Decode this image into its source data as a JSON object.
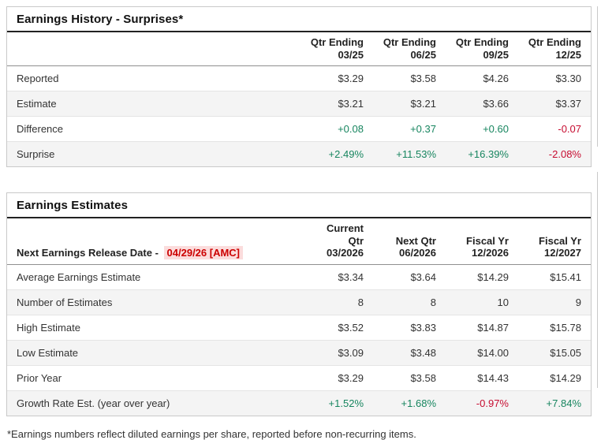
{
  "colors": {
    "positive": "#17855f",
    "negative": "#c60c30",
    "release_date_text": "#cc0000",
    "release_date_bg": "#fbdcdc"
  },
  "surprises_table": {
    "title": "Earnings History - Surprises*",
    "columns": [
      {
        "line1": "Qtr Ending",
        "line2": "03/25"
      },
      {
        "line1": "Qtr Ending",
        "line2": "06/25"
      },
      {
        "line1": "Qtr Ending",
        "line2": "09/25"
      },
      {
        "line1": "Qtr Ending",
        "line2": "12/25"
      }
    ],
    "rows": [
      {
        "label": "Reported",
        "values": [
          {
            "text": "$3.29",
            "tone": ""
          },
          {
            "text": "$3.58",
            "tone": ""
          },
          {
            "text": "$4.26",
            "tone": ""
          },
          {
            "text": "$3.30",
            "tone": ""
          }
        ]
      },
      {
        "label": "Estimate",
        "values": [
          {
            "text": "$3.21",
            "tone": ""
          },
          {
            "text": "$3.21",
            "tone": ""
          },
          {
            "text": "$3.66",
            "tone": ""
          },
          {
            "text": "$3.37",
            "tone": ""
          }
        ]
      },
      {
        "label": "Difference",
        "values": [
          {
            "text": "+0.08",
            "tone": "pos"
          },
          {
            "text": "+0.37",
            "tone": "pos"
          },
          {
            "text": "+0.60",
            "tone": "pos"
          },
          {
            "text": "-0.07",
            "tone": "neg"
          }
        ]
      },
      {
        "label": "Surprise",
        "values": [
          {
            "text": "+2.49%",
            "tone": "pos"
          },
          {
            "text": "+11.53%",
            "tone": "pos"
          },
          {
            "text": "+16.39%",
            "tone": "pos"
          },
          {
            "text": "-2.08%",
            "tone": "neg"
          }
        ]
      }
    ]
  },
  "estimates_table": {
    "title": "Earnings Estimates",
    "release_label": "Next Earnings Release Date - ",
    "release_date": "04/29/26 [AMC]",
    "columns": [
      {
        "line1": "Current Qtr",
        "line2": "03/2026"
      },
      {
        "line1": "Next Qtr",
        "line2": "06/2026"
      },
      {
        "line1": "Fiscal Yr",
        "line2": "12/2026"
      },
      {
        "line1": "Fiscal Yr",
        "line2": "12/2027"
      }
    ],
    "rows": [
      {
        "label": "Average Earnings Estimate",
        "values": [
          {
            "text": "$3.34",
            "tone": ""
          },
          {
            "text": "$3.64",
            "tone": ""
          },
          {
            "text": "$14.29",
            "tone": ""
          },
          {
            "text": "$15.41",
            "tone": ""
          }
        ]
      },
      {
        "label": "Number of Estimates",
        "values": [
          {
            "text": "8",
            "tone": ""
          },
          {
            "text": "8",
            "tone": ""
          },
          {
            "text": "10",
            "tone": ""
          },
          {
            "text": "9",
            "tone": ""
          }
        ]
      },
      {
        "label": "High Estimate",
        "values": [
          {
            "text": "$3.52",
            "tone": ""
          },
          {
            "text": "$3.83",
            "tone": ""
          },
          {
            "text": "$14.87",
            "tone": ""
          },
          {
            "text": "$15.78",
            "tone": ""
          }
        ]
      },
      {
        "label": "Low Estimate",
        "values": [
          {
            "text": "$3.09",
            "tone": ""
          },
          {
            "text": "$3.48",
            "tone": ""
          },
          {
            "text": "$14.00",
            "tone": ""
          },
          {
            "text": "$15.05",
            "tone": ""
          }
        ]
      },
      {
        "label": "Prior Year",
        "values": [
          {
            "text": "$3.29",
            "tone": ""
          },
          {
            "text": "$3.58",
            "tone": ""
          },
          {
            "text": "$14.43",
            "tone": ""
          },
          {
            "text": "$14.29",
            "tone": ""
          }
        ]
      },
      {
        "label": "Growth Rate Est. (year over year)",
        "values": [
          {
            "text": "+1.52%",
            "tone": "pos"
          },
          {
            "text": "+1.68%",
            "tone": "pos"
          },
          {
            "text": "-0.97%",
            "tone": "neg"
          },
          {
            "text": "+7.84%",
            "tone": "pos"
          }
        ]
      }
    ]
  },
  "footnote": "*Earnings numbers reflect diluted earnings per share, reported before non-recurring items."
}
